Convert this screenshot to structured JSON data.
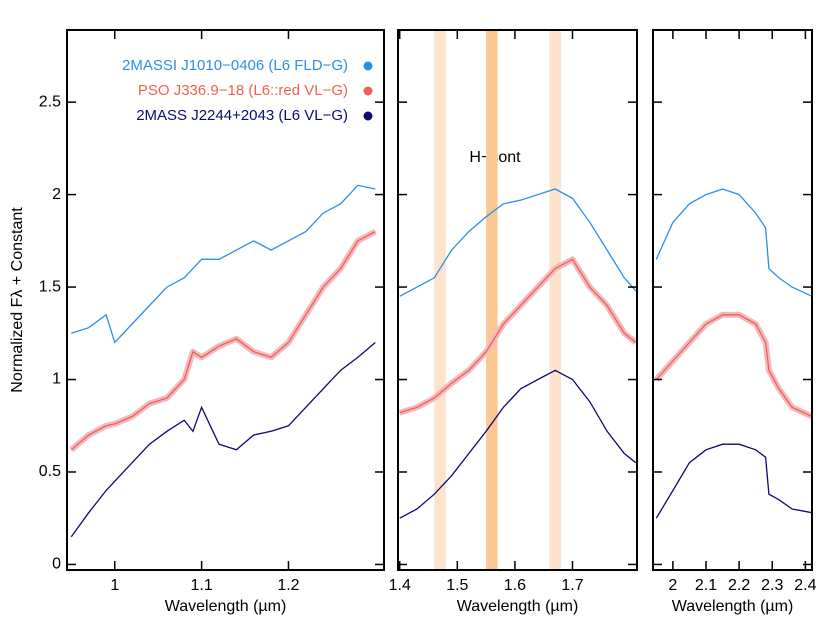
{
  "chart_data": [
    {
      "type": "line",
      "ylabel": "Normalized Fλ + Constant",
      "xlabel": "Wavelength (µm)",
      "xlim": [
        0.945,
        1.31
      ],
      "xticks": [
        1.0,
        1.1,
        1.2
      ],
      "ylim": [
        -0.03,
        2.89
      ],
      "yticks": [
        0.0,
        0.5,
        1.0,
        1.5,
        2.0,
        2.5
      ],
      "legend": "upper right",
      "x": [
        0.95,
        0.97,
        0.99,
        1.0,
        1.02,
        1.04,
        1.06,
        1.08,
        1.09,
        1.1,
        1.12,
        1.14,
        1.16,
        1.18,
        1.2,
        1.22,
        1.24,
        1.26,
        1.28,
        1.3
      ],
      "series": [
        {
          "name": "2MASSI J1010−0406 (L6 FLD−G)",
          "color": "#2b8fe8",
          "values": [
            1.25,
            1.28,
            1.35,
            1.2,
            1.3,
            1.4,
            1.5,
            1.55,
            1.6,
            1.65,
            1.65,
            1.7,
            1.75,
            1.7,
            1.75,
            1.8,
            1.9,
            1.95,
            2.05,
            2.03
          ]
        },
        {
          "name": "PSO J336.9−18 (L6::red VL−G)",
          "color": "#f0624d",
          "values": [
            0.62,
            0.7,
            0.75,
            0.76,
            0.8,
            0.87,
            0.9,
            1.0,
            1.15,
            1.12,
            1.18,
            1.22,
            1.15,
            1.12,
            1.2,
            1.35,
            1.5,
            1.6,
            1.75,
            1.8
          ]
        },
        {
          "name": "2MASS J2244+2043 (L6 VL−G)",
          "color": "#0b0b70",
          "values": [
            0.15,
            0.28,
            0.4,
            0.45,
            0.55,
            0.65,
            0.72,
            0.78,
            0.72,
            0.85,
            0.65,
            0.62,
            0.7,
            0.72,
            0.75,
            0.85,
            0.95,
            1.05,
            1.12,
            1.2
          ]
        }
      ]
    },
    {
      "type": "line",
      "xlabel": "Wavelength (µm)",
      "annotation": "H−cont",
      "xlim": [
        1.397,
        1.812
      ],
      "xticks": [
        1.4,
        1.5,
        1.6,
        1.7
      ],
      "ylim": [
        -0.03,
        2.89
      ],
      "bands": [
        [
          1.46,
          1.48
        ],
        [
          1.55,
          1.57
        ],
        [
          1.66,
          1.68
        ]
      ],
      "band_colors": [
        "#fde3cc",
        "#fbc894",
        "#fde3cc"
      ],
      "x": [
        1.4,
        1.43,
        1.46,
        1.49,
        1.52,
        1.55,
        1.58,
        1.61,
        1.64,
        1.67,
        1.7,
        1.73,
        1.76,
        1.79,
        1.81
      ],
      "series": [
        {
          "color": "#2b8fe8",
          "values": [
            1.45,
            1.5,
            1.55,
            1.7,
            1.8,
            1.88,
            1.95,
            1.97,
            2.0,
            2.03,
            1.98,
            1.85,
            1.7,
            1.55,
            1.48
          ]
        },
        {
          "color": "#f0624d",
          "values": [
            0.82,
            0.85,
            0.9,
            0.98,
            1.05,
            1.15,
            1.3,
            1.4,
            1.5,
            1.6,
            1.65,
            1.5,
            1.4,
            1.25,
            1.2
          ]
        },
        {
          "color": "#0b0b70",
          "values": [
            0.25,
            0.3,
            0.38,
            0.48,
            0.6,
            0.72,
            0.85,
            0.95,
            1.0,
            1.05,
            1.0,
            0.88,
            0.72,
            0.6,
            0.55
          ]
        }
      ]
    },
    {
      "type": "line",
      "xlabel": "Wavelength (µm)",
      "xlim": [
        1.94,
        2.42
      ],
      "xticks": [
        2.0,
        2.1,
        2.2,
        2.3,
        2.4
      ],
      "ylim": [
        -0.03,
        2.89
      ],
      "x": [
        1.95,
        2.0,
        2.05,
        2.1,
        2.15,
        2.2,
        2.25,
        2.28,
        2.29,
        2.32,
        2.36,
        2.42
      ],
      "series": [
        {
          "color": "#2b8fe8",
          "values": [
            1.65,
            1.85,
            1.95,
            2.0,
            2.03,
            2.0,
            1.9,
            1.82,
            1.6,
            1.55,
            1.5,
            1.45
          ]
        },
        {
          "color": "#f0624d",
          "values": [
            1.0,
            1.1,
            1.2,
            1.3,
            1.35,
            1.35,
            1.3,
            1.2,
            1.05,
            0.95,
            0.85,
            0.8
          ]
        },
        {
          "color": "#0b0b70",
          "values": [
            0.25,
            0.4,
            0.55,
            0.62,
            0.65,
            0.65,
            0.62,
            0.58,
            0.38,
            0.35,
            0.3,
            0.28
          ]
        }
      ]
    }
  ]
}
